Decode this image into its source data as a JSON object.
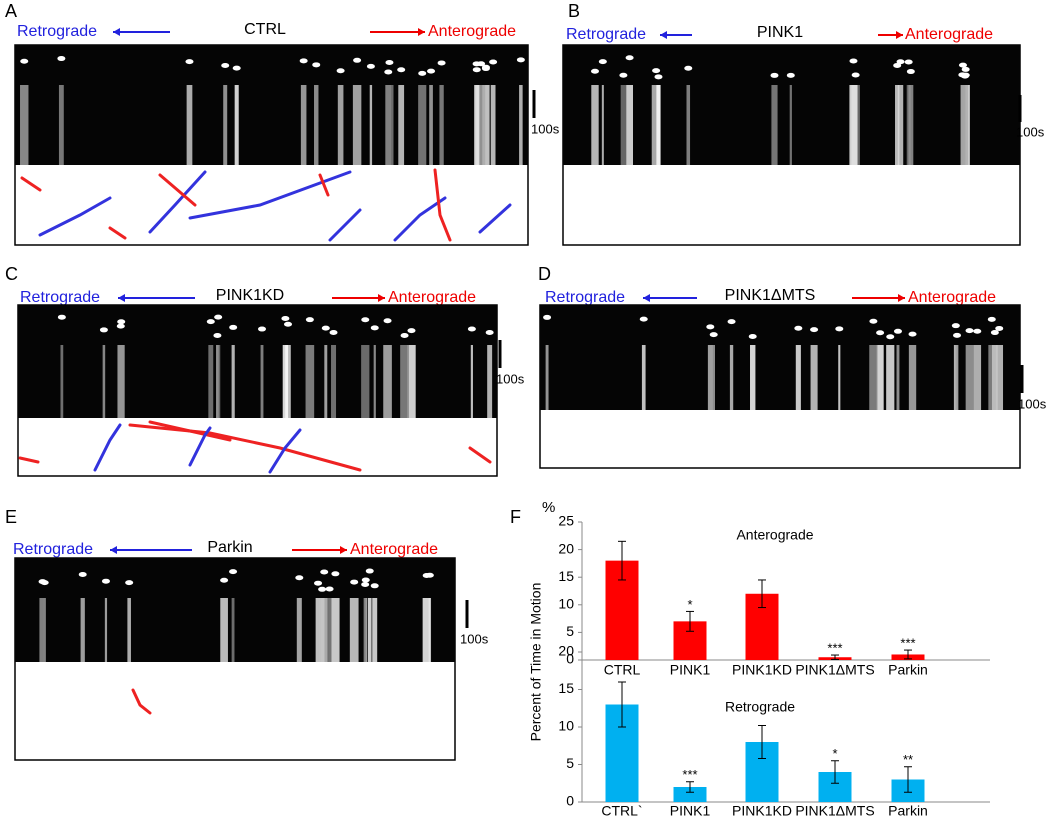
{
  "panels": [
    {
      "letter": "A",
      "title": "CTRL",
      "retrograde": "Retrograde",
      "anterograde": "Anterograde",
      "scale": "100s"
    },
    {
      "letter": "B",
      "title": "PINK1",
      "retrograde": "Retrograde",
      "anterograde": "Anterograde",
      "scale": "100s"
    },
    {
      "letter": "C",
      "title": "PINK1KD",
      "retrograde": "Retrograde",
      "anterograde": "Anterograde",
      "scale": "100s"
    },
    {
      "letter": "D",
      "title": "PINK1ΔMTS",
      "retrograde": "Retrograde",
      "anterograde": "Anterograde",
      "scale": "100s"
    },
    {
      "letter": "E",
      "title": "Parkin",
      "retrograde": "Retrograde",
      "anterograde": "Anterograde",
      "scale": "100s"
    }
  ],
  "panel_f": {
    "letter": "F",
    "unit": "%",
    "y_label": "Percent of Time in Motion"
  },
  "chart_data": [
    {
      "type": "bar",
      "title": "Anterograde",
      "categories": [
        "CTRL",
        "PINK1",
        "PINK1KD",
        "PINK1ΔMTS",
        "Parkin"
      ],
      "values": [
        18,
        7,
        12,
        0.5,
        1
      ],
      "errors": [
        3.5,
        1.8,
        2.5,
        0.4,
        0.8
      ],
      "significance": [
        null,
        "*",
        null,
        "***",
        "***"
      ],
      "color": "#ff0000",
      "ylim": [
        0,
        25
      ],
      "yticks": [
        0,
        5,
        10,
        15,
        20,
        25
      ]
    },
    {
      "type": "bar",
      "title": "Retrograde",
      "categories": [
        "CTRL`",
        "PINK1",
        "PINK1KD",
        "PINK1ΔMTS",
        "Parkin"
      ],
      "values": [
        13,
        2,
        8,
        4,
        3
      ],
      "errors": [
        3,
        0.7,
        2.2,
        1.5,
        1.7
      ],
      "significance": [
        null,
        "***",
        null,
        "*",
        "**"
      ],
      "color": "#00b0f0",
      "ylim": [
        0,
        20
      ],
      "yticks": [
        0,
        5,
        10,
        15,
        20
      ]
    }
  ]
}
